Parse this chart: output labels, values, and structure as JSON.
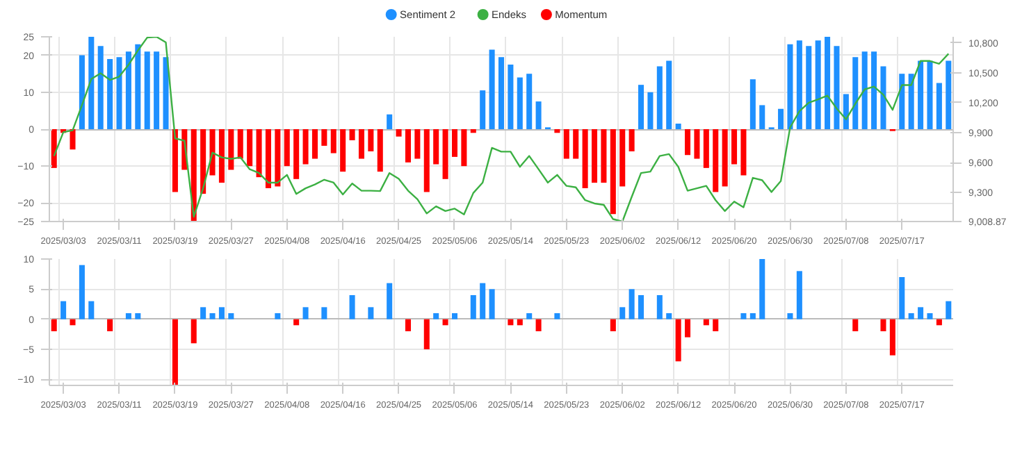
{
  "chart_data": [
    {
      "type": "bar",
      "categories": [
        null,
        "2025/03/03",
        null,
        null,
        null,
        null,
        null,
        "2025/03/11",
        null,
        null,
        null,
        null,
        null,
        "2025/03/19",
        null,
        null,
        null,
        null,
        null,
        "2025/03/27",
        null,
        null,
        null,
        null,
        null,
        "2025/04/08",
        null,
        null,
        null,
        null,
        null,
        "2025/04/16",
        null,
        null,
        null,
        null,
        null,
        "2025/04/25",
        null,
        null,
        null,
        null,
        null,
        "2025/05/06",
        null,
        null,
        null,
        null,
        null,
        "2025/05/14",
        null,
        null,
        null,
        null,
        null,
        "2025/05/23",
        null,
        null,
        null,
        null,
        null,
        "2025/06/02",
        null,
        null,
        null,
        null,
        null,
        "2025/06/12",
        null,
        null,
        null,
        null,
        null,
        "2025/06/20",
        null,
        null,
        null,
        null,
        null,
        "2025/06/30",
        null,
        null,
        null,
        null,
        null,
        "2025/07/08",
        null,
        null,
        null,
        null,
        null,
        "2025/07/17",
        null,
        null,
        null,
        null,
        null
      ],
      "series": [
        {
          "name": "Sentiment 2",
          "color": "#1e90ff",
          "values": [
            -10.5,
            -1,
            -5.5,
            20,
            25,
            22.5,
            19,
            19.5,
            21,
            23,
            21,
            21,
            19.5,
            -17,
            -11,
            -25,
            -17.5,
            -12.5,
            -14.5,
            -11,
            -8,
            -10,
            -13,
            -16,
            -15.5,
            -10,
            -13.5,
            -9.5,
            -8,
            -4.5,
            -6.5,
            -11.5,
            -3,
            -8,
            -6,
            -11.5,
            4,
            -2,
            -9,
            -8,
            -17,
            -9.5,
            -13.5,
            -7.5,
            -10,
            -1,
            10.5,
            21.5,
            19.5,
            17.5,
            14,
            15,
            7.5,
            0.5,
            -1,
            -8,
            -8,
            -16,
            -14.5,
            -14.5,
            -23,
            -15.5,
            -6,
            12,
            10,
            17,
            18.5,
            1.5,
            -7,
            -8,
            -10.5,
            -17,
            -15.5,
            -9.5,
            -12.5,
            13.5,
            6.5,
            0.5,
            5.5,
            23,
            24,
            22.5,
            24,
            25,
            22.5,
            9.5,
            19.5,
            21,
            21,
            17,
            -0.5,
            15,
            15,
            18.5,
            18.5,
            12.5,
            18.5
          ],
          "colors": [
            "#ff0000",
            "#ff0000",
            "#ff0000",
            "#1e90ff",
            "#1e90ff",
            "#1e90ff",
            "#1e90ff",
            "#1e90ff",
            "#1e90ff",
            "#1e90ff",
            "#1e90ff",
            "#1e90ff",
            "#1e90ff",
            "#ff0000",
            "#ff0000",
            "#ff0000",
            "#ff0000",
            "#ff0000",
            "#ff0000",
            "#ff0000",
            "#ff0000",
            "#ff0000",
            "#ff0000",
            "#ff0000",
            "#ff0000",
            "#ff0000",
            "#ff0000",
            "#ff0000",
            "#ff0000",
            "#ff0000",
            "#ff0000",
            "#ff0000",
            "#ff0000",
            "#ff0000",
            "#ff0000",
            "#ff0000",
            "#1e90ff",
            "#ff0000",
            "#ff0000",
            "#ff0000",
            "#ff0000",
            "#ff0000",
            "#ff0000",
            "#ff0000",
            "#ff0000",
            "#ff0000",
            "#1e90ff",
            "#1e90ff",
            "#1e90ff",
            "#1e90ff",
            "#1e90ff",
            "#1e90ff",
            "#1e90ff",
            "#1e90ff",
            "#ff0000",
            "#ff0000",
            "#ff0000",
            "#ff0000",
            "#ff0000",
            "#ff0000",
            "#ff0000",
            "#ff0000",
            "#ff0000",
            "#1e90ff",
            "#1e90ff",
            "#1e90ff",
            "#1e90ff",
            "#1e90ff",
            "#ff0000",
            "#ff0000",
            "#ff0000",
            "#ff0000",
            "#ff0000",
            "#ff0000",
            "#ff0000",
            "#1e90ff",
            "#1e90ff",
            "#1e90ff",
            "#1e90ff",
            "#1e90ff",
            "#1e90ff",
            "#1e90ff",
            "#1e90ff",
            "#1e90ff",
            "#1e90ff",
            "#1e90ff",
            "#1e90ff",
            "#1e90ff",
            "#1e90ff",
            "#1e90ff",
            "#ff0000",
            "#1e90ff",
            "#1e90ff",
            "#1e90ff",
            "#1e90ff",
            "#1e90ff",
            "#1e90ff"
          ]
        },
        {
          "name": "Endeks",
          "type": "line",
          "axis": "y2",
          "color": "#3cb043",
          "values": [
            9666,
            9904,
            9923,
            10175,
            10437,
            10494,
            10428,
            10461,
            10580,
            10723,
            10852,
            10860,
            10804,
            9842,
            9818,
            9056,
            9342,
            9699,
            9652,
            9637,
            9652,
            9533,
            9495,
            9399,
            9399,
            9476,
            9285,
            9342,
            9380,
            9428,
            9399,
            9280,
            9390,
            9318,
            9318,
            9314,
            9495,
            9437,
            9318,
            9233,
            9090,
            9161,
            9114,
            9138,
            9080,
            9295,
            9399,
            9747,
            9709,
            9709,
            9557,
            9666,
            9533,
            9399,
            9476,
            9366,
            9352,
            9223,
            9190,
            9176,
            9033,
            9008.87,
            9256,
            9495,
            9509,
            9666,
            9685,
            9557,
            9318,
            9342,
            9366,
            9223,
            9114,
            9209,
            9152,
            9447,
            9423,
            9304,
            9414,
            9952,
            10114,
            10199,
            10233,
            10271,
            10142,
            10033,
            10190,
            10333,
            10361,
            10280,
            10128,
            10376,
            10376,
            10618,
            10618,
            10590,
            10690
          ]
        }
      ],
      "ylim": [
        -25,
        25
      ],
      "yticks": [
        -25,
        -20,
        -10,
        0,
        10,
        20,
        25
      ],
      "y2lim": [
        9008.87,
        10860
      ],
      "y2ticks": [
        {
          "value": 9008.87,
          "label": "9,008.87"
        },
        {
          "value": 9300,
          "label": "9,300"
        },
        {
          "value": 9600,
          "label": "9,600"
        },
        {
          "value": 9900,
          "label": "9,900"
        },
        {
          "value": 10200,
          "label": "10,200"
        },
        {
          "value": 10500,
          "label": "10,500"
        },
        {
          "value": 10800,
          "label": "10,800"
        }
      ],
      "grid": true,
      "legend": "top"
    },
    {
      "type": "bar",
      "categories": [
        null,
        "2025/03/03",
        null,
        null,
        null,
        null,
        null,
        "2025/03/11",
        null,
        null,
        null,
        null,
        null,
        "2025/03/19",
        null,
        null,
        null,
        null,
        null,
        "2025/03/27",
        null,
        null,
        null,
        null,
        null,
        "2025/04/08",
        null,
        null,
        null,
        null,
        null,
        "2025/04/16",
        null,
        null,
        null,
        null,
        null,
        "2025/04/25",
        null,
        null,
        null,
        null,
        null,
        "2025/05/06",
        null,
        null,
        null,
        null,
        null,
        "2025/05/14",
        null,
        null,
        null,
        null,
        null,
        "2025/05/23",
        null,
        null,
        null,
        null,
        null,
        "2025/06/02",
        null,
        null,
        null,
        null,
        null,
        "2025/06/12",
        null,
        null,
        null,
        null,
        null,
        "2025/06/20",
        null,
        null,
        null,
        null,
        null,
        "2025/06/30",
        null,
        null,
        null,
        null,
        null,
        "2025/07/08",
        null,
        null,
        null,
        null,
        null,
        "2025/07/17",
        null,
        null,
        null,
        null,
        null
      ],
      "series": [
        {
          "name": "Momentum",
          "color": "#ff0000",
          "values": [
            -2,
            3,
            -1,
            9,
            3,
            0,
            -2,
            0,
            1,
            1,
            0,
            0,
            0,
            -11,
            0,
            -4,
            2,
            1,
            2,
            1,
            0,
            0,
            0,
            0,
            1,
            0,
            -1,
            2,
            0,
            2,
            0,
            0,
            4,
            0,
            2,
            0,
            6,
            0,
            -2,
            0,
            -5,
            1,
            -1,
            1,
            0,
            4,
            6,
            5,
            0,
            -1,
            -1,
            1,
            -2,
            0,
            1,
            0,
            0,
            0,
            0,
            0,
            -2,
            2,
            5,
            4,
            0,
            4,
            1,
            -7,
            -3,
            0,
            -1,
            -2,
            0,
            0,
            1,
            1,
            10,
            0,
            0,
            1,
            8,
            0,
            0,
            0,
            0,
            0,
            -2,
            0,
            0,
            -2,
            -6,
            7,
            1,
            2,
            1,
            -1,
            3
          ],
          "colors": [
            "#ff0000",
            "#1e90ff",
            "#ff0000",
            "#1e90ff",
            "#1e90ff",
            "#1e90ff",
            "#ff0000",
            "#1e90ff",
            "#1e90ff",
            "#1e90ff",
            "#1e90ff",
            "#1e90ff",
            "#1e90ff",
            "#ff0000",
            "#1e90ff",
            "#ff0000",
            "#1e90ff",
            "#1e90ff",
            "#1e90ff",
            "#1e90ff",
            "#1e90ff",
            "#1e90ff",
            "#1e90ff",
            "#1e90ff",
            "#1e90ff",
            "#1e90ff",
            "#ff0000",
            "#1e90ff",
            "#1e90ff",
            "#1e90ff",
            "#1e90ff",
            "#1e90ff",
            "#1e90ff",
            "#1e90ff",
            "#1e90ff",
            "#1e90ff",
            "#1e90ff",
            "#1e90ff",
            "#ff0000",
            "#1e90ff",
            "#ff0000",
            "#1e90ff",
            "#ff0000",
            "#1e90ff",
            "#1e90ff",
            "#1e90ff",
            "#1e90ff",
            "#1e90ff",
            "#1e90ff",
            "#ff0000",
            "#ff0000",
            "#1e90ff",
            "#ff0000",
            "#1e90ff",
            "#1e90ff",
            "#1e90ff",
            "#1e90ff",
            "#1e90ff",
            "#1e90ff",
            "#1e90ff",
            "#ff0000",
            "#1e90ff",
            "#1e90ff",
            "#1e90ff",
            "#1e90ff",
            "#1e90ff",
            "#1e90ff",
            "#ff0000",
            "#ff0000",
            "#1e90ff",
            "#ff0000",
            "#ff0000",
            "#1e90ff",
            "#1e90ff",
            "#1e90ff",
            "#1e90ff",
            "#1e90ff",
            "#1e90ff",
            "#1e90ff",
            "#1e90ff",
            "#1e90ff",
            "#1e90ff",
            "#1e90ff",
            "#1e90ff",
            "#1e90ff",
            "#1e90ff",
            "#ff0000",
            "#1e90ff",
            "#1e90ff",
            "#ff0000",
            "#ff0000",
            "#1e90ff",
            "#1e90ff",
            "#1e90ff",
            "#1e90ff",
            "#ff0000",
            "#1e90ff"
          ]
        }
      ],
      "ylim": [
        -11,
        10
      ],
      "yticks": [
        -10,
        -5,
        0,
        5,
        10
      ],
      "grid": true,
      "legend": "top"
    }
  ]
}
